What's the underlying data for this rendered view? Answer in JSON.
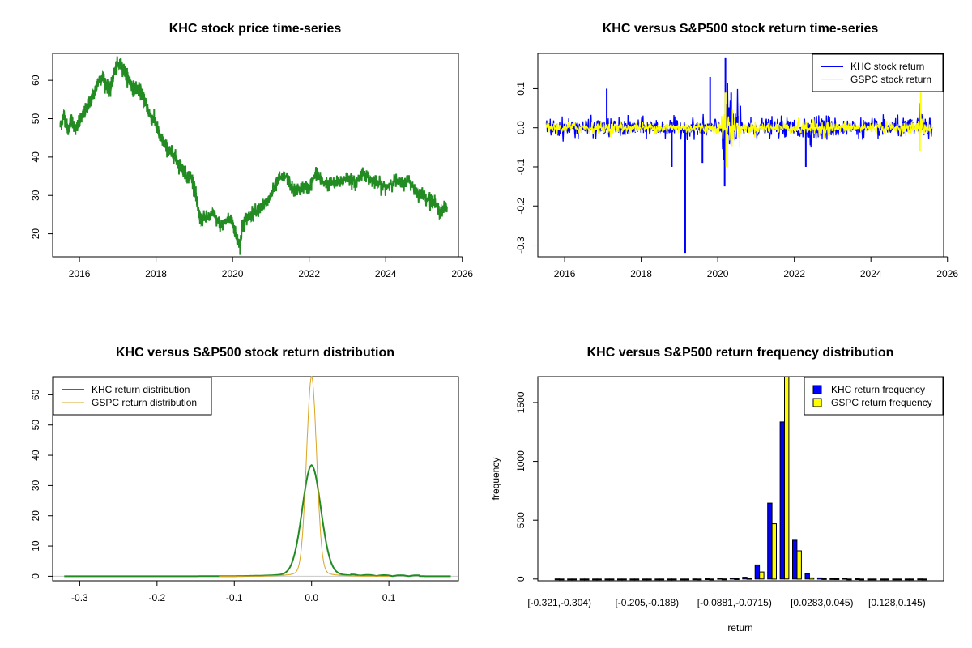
{
  "chart_data": [
    {
      "id": "price",
      "type": "line",
      "title": "KHC stock price time-series",
      "xlabel": "",
      "ylabel": "",
      "xlim": [
        2015.3,
        2025.9
      ],
      "ylim": [
        14,
        67
      ],
      "xticks": [
        2016,
        2018,
        2020,
        2022,
        2024,
        2026
      ],
      "xtick_labels": [
        "2016",
        "2018",
        "2020",
        "2022",
        "2024",
        "2026"
      ],
      "yticks": [
        20,
        30,
        40,
        50,
        60
      ],
      "ytick_labels": [
        "20",
        "30",
        "40",
        "50",
        "60"
      ],
      "series": [
        {
          "name": "KHC price",
          "color": "#228B22",
          "x": [
            2015.5,
            2015.6,
            2015.7,
            2015.8,
            2015.9,
            2016.0,
            2016.1,
            2016.2,
            2016.3,
            2016.4,
            2016.5,
            2016.6,
            2016.7,
            2016.8,
            2016.9,
            2017.0,
            2017.1,
            2017.2,
            2017.3,
            2017.4,
            2017.5,
            2017.6,
            2017.7,
            2017.8,
            2017.9,
            2018.0,
            2018.1,
            2018.2,
            2018.3,
            2018.4,
            2018.5,
            2018.6,
            2018.7,
            2018.8,
            2018.9,
            2019.0,
            2019.1,
            2019.15,
            2019.3,
            2019.5,
            2019.7,
            2019.9,
            2020.0,
            2020.1,
            2020.2,
            2020.25,
            2020.35,
            2020.5,
            2020.7,
            2020.9,
            2021.0,
            2021.2,
            2021.4,
            2021.6,
            2021.8,
            2022.0,
            2022.2,
            2022.3,
            2022.5,
            2022.7,
            2022.9,
            2023.0,
            2023.2,
            2023.4,
            2023.6,
            2023.8,
            2024.0,
            2024.2,
            2024.4,
            2024.6,
            2024.8,
            2025.0,
            2025.2,
            2025.4,
            2025.6
          ],
          "y": [
            48,
            51,
            47,
            50,
            47,
            49,
            51,
            53,
            55,
            57,
            60,
            61,
            59,
            57,
            62,
            64,
            64,
            62,
            60,
            58,
            58,
            57,
            55,
            52,
            50,
            49,
            45,
            44,
            42,
            41,
            40,
            38,
            37,
            35,
            35,
            33,
            26,
            24,
            24,
            25,
            22,
            24,
            23,
            19,
            17,
            22,
            24,
            25,
            27,
            28,
            30,
            34,
            35,
            31,
            32,
            32,
            36,
            34,
            33,
            33,
            34,
            35,
            33,
            36,
            34,
            33,
            32,
            34,
            33,
            34,
            31,
            30,
            29,
            26,
            27
          ]
        }
      ]
    },
    {
      "id": "returns",
      "type": "line",
      "title": "KHC versus S&P500 stock return time-series",
      "xlabel": "",
      "ylabel": "",
      "xlim": [
        2015.3,
        2025.9
      ],
      "ylim": [
        -0.33,
        0.19
      ],
      "xticks": [
        2016,
        2018,
        2020,
        2022,
        2024,
        2026
      ],
      "xtick_labels": [
        "2016",
        "2018",
        "2020",
        "2022",
        "2024",
        "2026"
      ],
      "yticks": [
        -0.3,
        -0.2,
        -0.1,
        0.0,
        0.1
      ],
      "ytick_labels": [
        "-0.3",
        "-0.2",
        "-0.1",
        "0.0",
        "0.1"
      ],
      "legend": {
        "position": "top-right",
        "entries": [
          {
            "label": "KHC stock return",
            "color": "#0000FF"
          },
          {
            "label": "GSPC stock return",
            "color": "#FFFF00"
          }
        ]
      },
      "khc_spikes": [
        {
          "x": 2017.1,
          "y": 0.1
        },
        {
          "x": 2018.8,
          "y": -0.1
        },
        {
          "x": 2019.15,
          "y": -0.32
        },
        {
          "x": 2019.6,
          "y": -0.09
        },
        {
          "x": 2019.8,
          "y": 0.13
        },
        {
          "x": 2020.2,
          "y": 0.18
        },
        {
          "x": 2020.18,
          "y": -0.15
        },
        {
          "x": 2020.35,
          "y": 0.09
        },
        {
          "x": 2022.3,
          "y": -0.1
        }
      ],
      "gspc_spikes": [
        {
          "x": 2020.2,
          "y": 0.09
        },
        {
          "x": 2020.22,
          "y": -0.1
        },
        {
          "x": 2025.3,
          "y": 0.09
        },
        {
          "x": 2025.28,
          "y": -0.06
        }
      ]
    },
    {
      "id": "density",
      "type": "line",
      "title": "KHC versus S&P500 stock return distribution",
      "xlabel": "",
      "ylabel": "",
      "xlim": [
        -0.335,
        0.19
      ],
      "ylim": [
        -1.5,
        66
      ],
      "xticks": [
        -0.3,
        -0.2,
        -0.1,
        0.0,
        0.1
      ],
      "xtick_labels": [
        "-0.3",
        "-0.2",
        "-0.1",
        "0.0",
        "0.1"
      ],
      "yticks": [
        0,
        10,
        20,
        30,
        40,
        50,
        60
      ],
      "ytick_labels": [
        "0",
        "10",
        "20",
        "30",
        "40",
        "50",
        "60"
      ],
      "legend": {
        "position": "top-left",
        "entries": [
          {
            "label": "KHC return distribution",
            "color": "#228B22"
          },
          {
            "label": "GSPC return distribution",
            "color": "#DAA520"
          }
        ]
      },
      "series": [
        {
          "name": "KHC return distribution",
          "color": "#228B22",
          "kind": "khc_density",
          "peak": 35,
          "sigma": 0.012,
          "xmin": -0.32,
          "xmax": 0.18
        },
        {
          "name": "GSPC return distribution",
          "color": "#DAA520",
          "kind": "gspc_density",
          "peak": 63,
          "sigma": 0.0065,
          "xmin": -0.12,
          "xmax": 0.1
        }
      ]
    },
    {
      "id": "hist",
      "type": "bar",
      "title": "KHC versus S&P500 return frequency distribution",
      "xlabel": "return",
      "ylabel": "frequency",
      "ylim": [
        -15,
        1720
      ],
      "yticks": [
        0,
        500,
        1000,
        1500
      ],
      "ytick_labels": [
        "0",
        "500",
        "1000",
        "1500"
      ],
      "xtick_labels": [
        "[-0.321,-0.304)",
        "[-0.205,-0.188)",
        "[-0.0881,-0.0715)",
        "[0.0283,0.045)",
        "[0.128,0.145)"
      ],
      "xtick_bin_index": [
        0,
        7,
        14,
        21,
        27
      ],
      "legend": {
        "position": "top-right",
        "entries": [
          {
            "label": "KHC return frequency",
            "color": "#0000FF"
          },
          {
            "label": "GSPC return frequency",
            "color": "#FFFF00"
          }
        ]
      },
      "series": [
        {
          "name": "KHC return frequency",
          "color": "#0000FF",
          "values": [
            1,
            0,
            0,
            0,
            0,
            0,
            0,
            0,
            0,
            0,
            0,
            1,
            2,
            5,
            8,
            15,
            120,
            645,
            1335,
            330,
            45,
            10,
            3,
            5,
            2,
            0,
            0,
            0,
            0,
            1
          ]
        },
        {
          "name": "GSPC return frequency",
          "color": "#FFFF00",
          "values": [
            0,
            0,
            0,
            0,
            0,
            0,
            0,
            0,
            0,
            0,
            0,
            0,
            0,
            1,
            2,
            5,
            60,
            470,
            1730,
            240,
            10,
            3,
            2,
            0,
            0,
            0,
            0,
            0,
            0,
            0
          ]
        }
      ]
    }
  ]
}
